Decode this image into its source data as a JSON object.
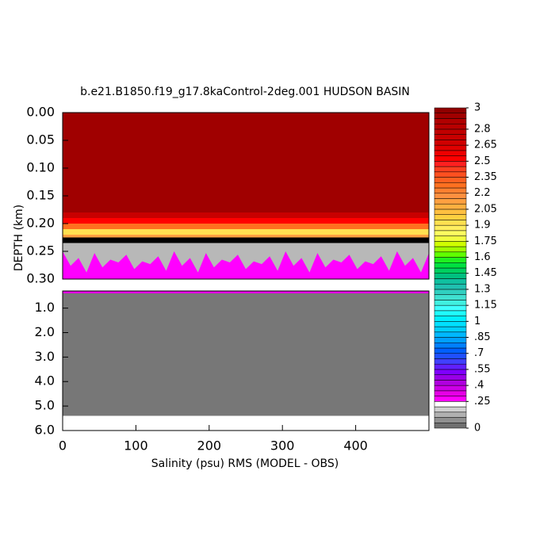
{
  "chart_data": {
    "type": "contour",
    "title": "b.e21.B1850.f19_g17.8kaControl-2deg.001 HUDSON BASIN",
    "ylabel": "DEPTH (km)",
    "xlabel": "Salinity (psu) RMS (MODEL - OBS)",
    "xlim": [
      0,
      500
    ],
    "xticks": [
      0,
      100,
      200,
      300,
      400
    ],
    "panels": [
      {
        "ylim": [
          0,
          0.3
        ],
        "yticks": [
          {
            "value": 0,
            "label": "0.00"
          },
          {
            "value": 0.05,
            "label": "0.05"
          },
          {
            "value": 0.1,
            "label": "0.10"
          },
          {
            "value": 0.15,
            "label": "0.15"
          },
          {
            "value": 0.2,
            "label": "0.20"
          },
          {
            "value": 0.25,
            "label": "0.25"
          },
          {
            "value": 0.3,
            "label": "0.30"
          }
        ]
      },
      {
        "ylim": [
          0.3,
          6
        ],
        "yticks": [
          {
            "value": 1,
            "label": "1.0"
          },
          {
            "value": 2,
            "label": "2.0"
          },
          {
            "value": 3,
            "label": "3.0"
          },
          {
            "value": 4,
            "label": "4.0"
          },
          {
            "value": 5,
            "label": "5.0"
          },
          {
            "value": 6,
            "label": "6.0"
          }
        ]
      }
    ],
    "colorbar": {
      "lim": [
        0,
        3
      ],
      "ticks": [
        3,
        2.8,
        2.65,
        2.5,
        2.35,
        2.2,
        2.05,
        1.9,
        1.75,
        1.6,
        1.45,
        1.3,
        1.15,
        1,
        {
          "value": 0.85,
          "label": ".85"
        },
        {
          "value": 0.7,
          "label": ".7"
        },
        {
          "value": 0.55,
          "label": ".55"
        },
        {
          "value": 0.4,
          "label": ".4"
        },
        {
          "value": 0.25,
          "label": ".25"
        },
        0
      ],
      "colors": [
        "#707070",
        "#909090",
        "#b0b0b0",
        "#d0d0d0",
        "#ffffff",
        "#ff00ff",
        "#e600e6",
        "#cc00e6",
        "#b000e0",
        "#9900e6",
        "#7f00ff",
        "#6020ff",
        "#4040ff",
        "#2050ff",
        "#0060ff",
        "#0080ff",
        "#00a0ff",
        "#00b8ff",
        "#00d0ff",
        "#00e0ff",
        "#00f0ff",
        "#20ffff",
        "#40ffff",
        "#40f0e0",
        "#40e0d0",
        "#30d0c0",
        "#20c0b0",
        "#10c0a0",
        "#00c080",
        "#00d060",
        "#00e040",
        "#20f020",
        "#60ff00",
        "#a0ff00",
        "#d0ff00",
        "#f0ff40",
        "#ffff60",
        "#ffee60",
        "#ffe050",
        "#ffd040",
        "#ffc040",
        "#ffb040",
        "#ffa040",
        "#ff9040",
        "#ff8030",
        "#ff7020",
        "#ff6020",
        "#ff5020",
        "#ff4020",
        "#ff2020",
        "#ff0000",
        "#f00000",
        "#e00000",
        "#d00000",
        "#c80000",
        "#c00000",
        "#b80000",
        "#b00000",
        "#a00000",
        "#900000"
      ]
    }
  }
}
